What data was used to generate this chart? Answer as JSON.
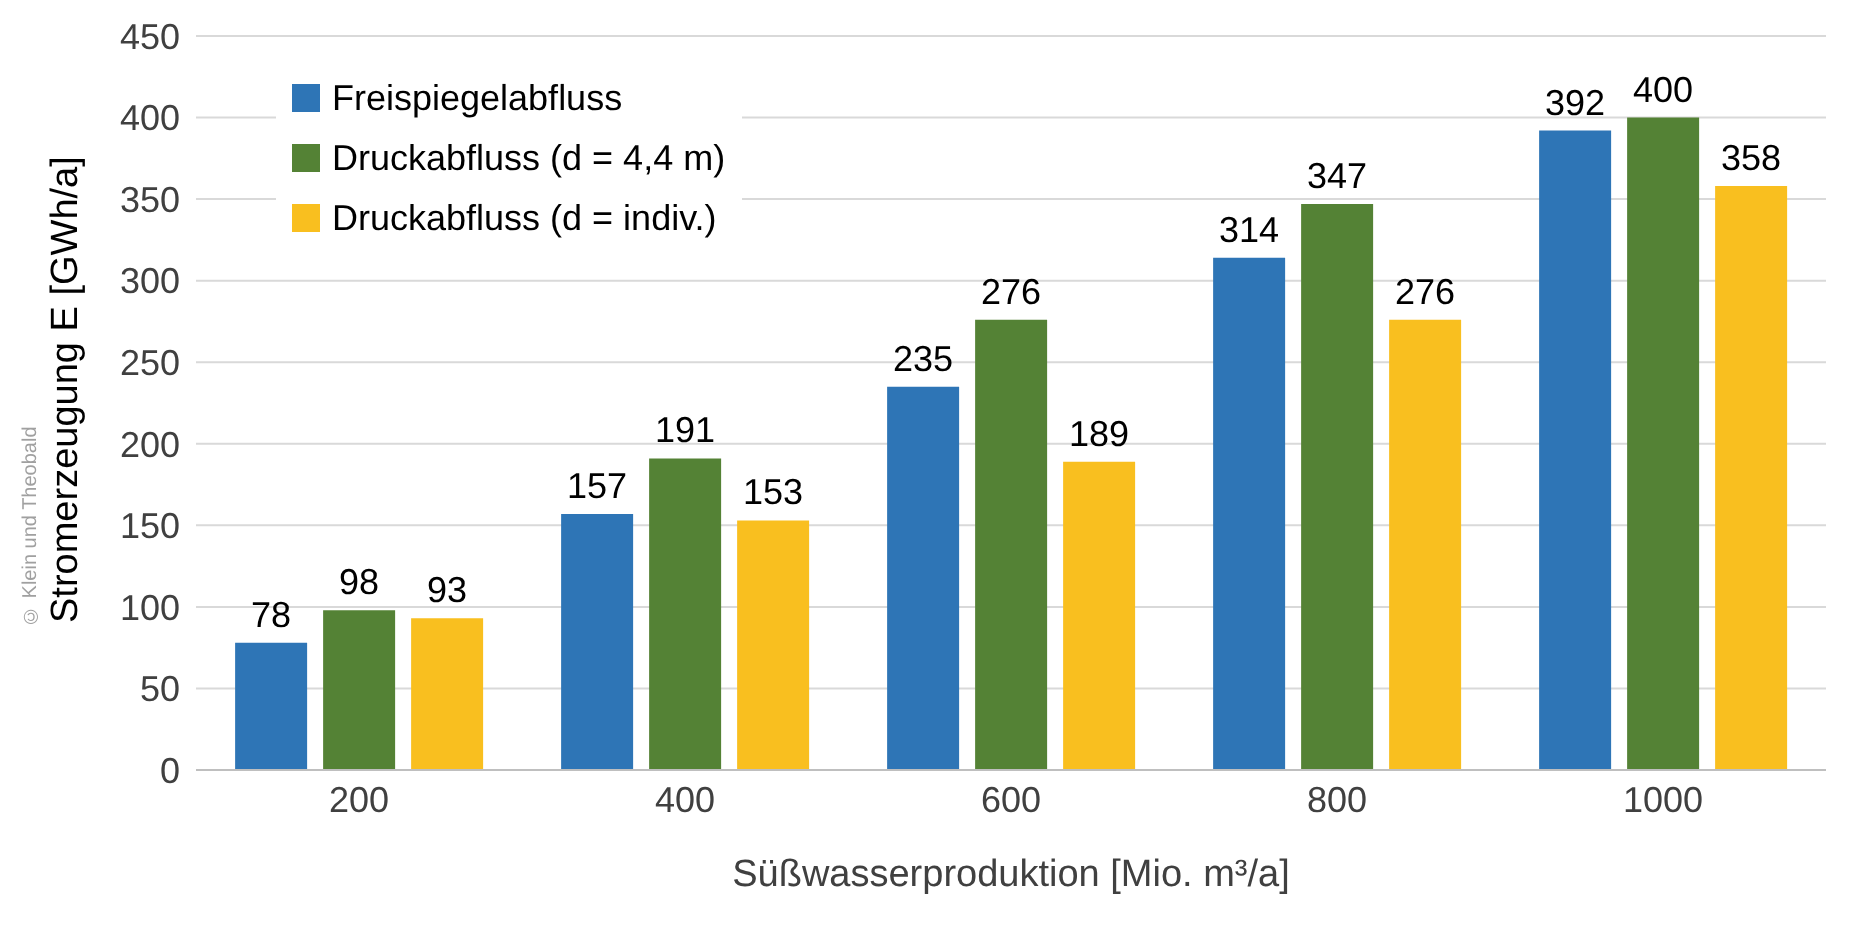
{
  "chart_data": {
    "type": "bar",
    "xlabel": "Süßwasserproduktion [Mio. m³/a]",
    "ylabel": "Stromerzeugung E [GWh/a]",
    "categories": [
      "200",
      "400",
      "600",
      "800",
      "1000"
    ],
    "series": [
      {
        "name": "Freispiegelabfluss",
        "color": "#2e75b6",
        "values": [
          78,
          157,
          235,
          314,
          392
        ]
      },
      {
        "name": "Druckabfluss (d = 4,4 m)",
        "color": "#548235",
        "values": [
          98,
          191,
          276,
          347,
          400
        ]
      },
      {
        "name": "Druckabfluss (d = indiv.)",
        "color": "#f9bf1f",
        "values": [
          93,
          153,
          189,
          276,
          358
        ]
      }
    ],
    "ylim": [
      0,
      450
    ],
    "yticks": [
      0,
      50,
      100,
      150,
      200,
      250,
      300,
      350,
      400,
      450
    ],
    "grid": "y",
    "legend": "top left",
    "data_labels": true,
    "annotations": [
      "© Klein und Theobald"
    ]
  }
}
